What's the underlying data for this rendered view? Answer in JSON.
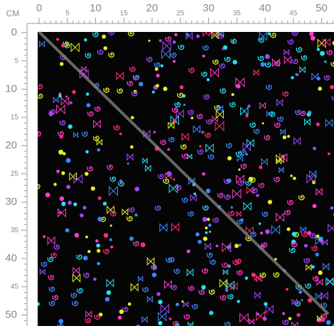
{
  "ruler": {
    "unit": "CM",
    "top_labels": [
      0,
      5,
      10,
      15,
      20,
      25,
      30,
      35,
      40,
      45,
      50
    ],
    "left_labels": [
      0,
      5,
      10,
      15,
      20,
      25,
      30,
      35,
      40,
      45,
      50
    ]
  }
}
